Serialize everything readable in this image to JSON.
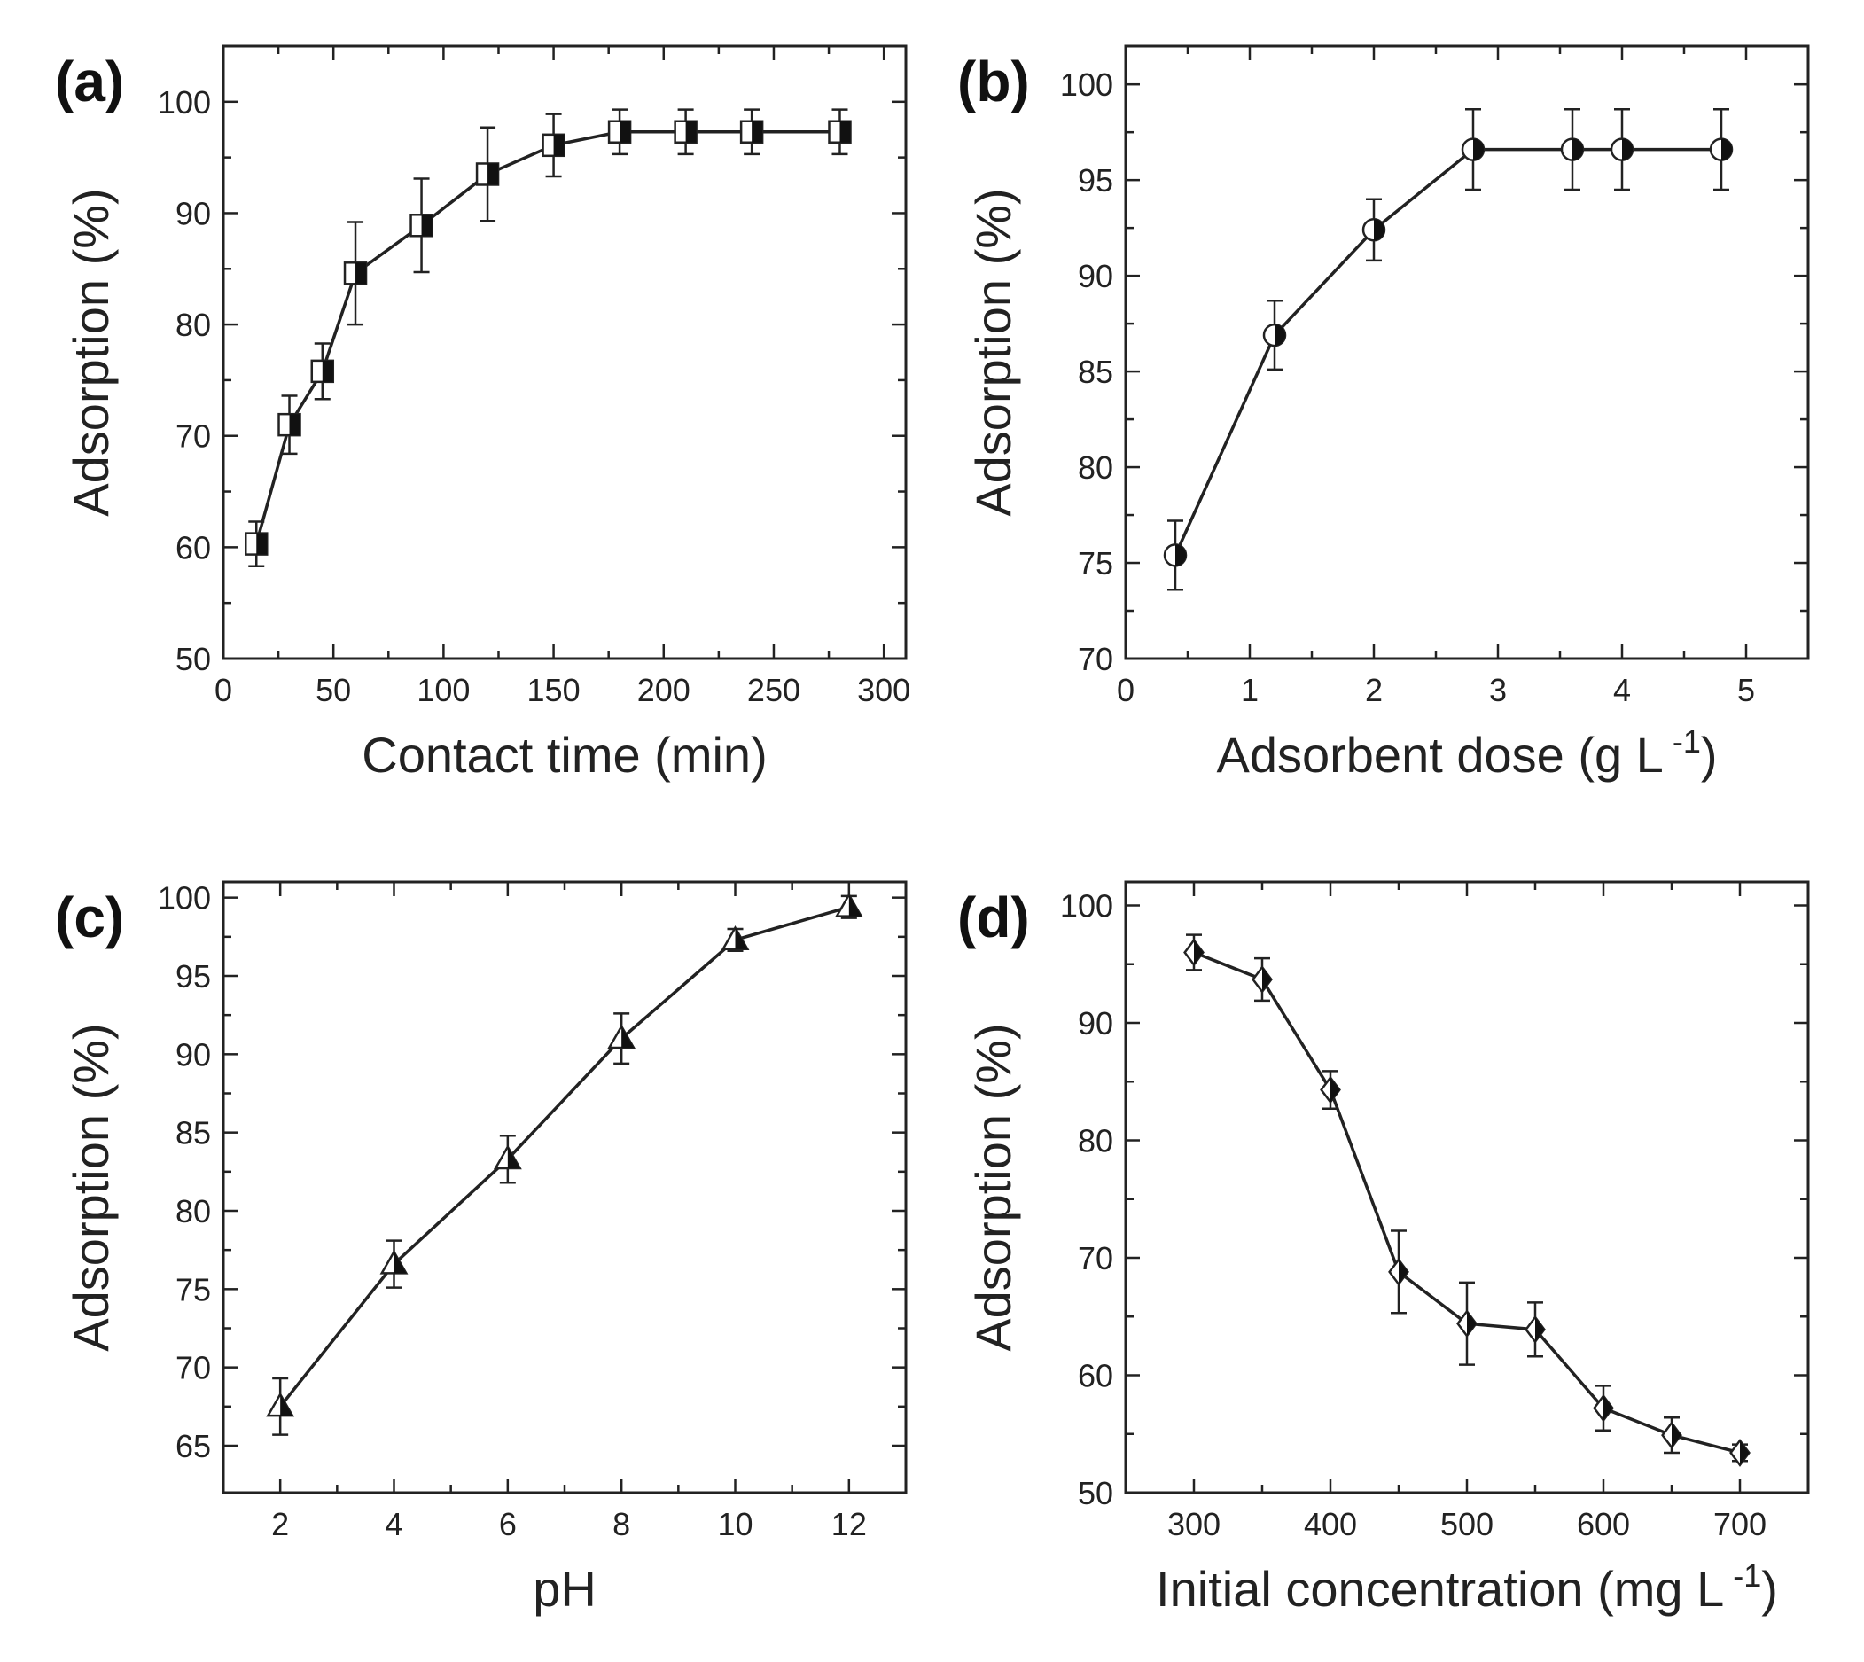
{
  "chart_data": [
    {
      "type": "line",
      "panel_label": "(a)",
      "xlabel": "Contact time (min)",
      "ylabel": "Adsorption (%)",
      "xlim": [
        0,
        310
      ],
      "ylim": [
        50,
        105
      ],
      "xticks": [
        0,
        50,
        100,
        150,
        200,
        250,
        300
      ],
      "yticks": [
        50,
        60,
        70,
        80,
        90,
        100
      ],
      "marker": "square-half-filled",
      "series": [
        {
          "x": [
            15,
            30,
            45,
            60,
            90,
            120,
            150,
            180,
            210,
            240,
            280
          ],
          "values": [
            60.3,
            71.0,
            75.8,
            84.6,
            88.9,
            93.5,
            96.1,
            97.3,
            97.3,
            97.3,
            97.3
          ],
          "errors": [
            2.0,
            2.6,
            2.5,
            4.6,
            4.2,
            4.2,
            2.8,
            2.0,
            2.0,
            2.0,
            2.0
          ]
        }
      ]
    },
    {
      "type": "line",
      "panel_label": "(b)",
      "xlabel": "Adsorbent dose (g L",
      "xlabel_sup": "-1",
      "xlabel_tail": ")",
      "ylabel": "Adsorption (%)",
      "xlim": [
        0,
        5.5
      ],
      "ylim": [
        70,
        102
      ],
      "xticks": [
        0,
        1,
        2,
        3,
        4,
        5
      ],
      "yticks": [
        70,
        75,
        80,
        85,
        90,
        95,
        100
      ],
      "marker": "circle-half-filled",
      "series": [
        {
          "x": [
            0.4,
            1.2,
            2.0,
            2.8,
            3.6,
            4.0,
            4.8
          ],
          "values": [
            75.4,
            86.9,
            92.4,
            96.6,
            96.6,
            96.6,
            96.6
          ],
          "errors": [
            1.8,
            1.8,
            1.6,
            2.1,
            2.1,
            2.1,
            2.1
          ]
        }
      ]
    },
    {
      "type": "line",
      "panel_label": "(c)",
      "xlabel": "pH",
      "ylabel": "Adsorption (%)",
      "xlim": [
        1,
        13
      ],
      "ylim": [
        62,
        101
      ],
      "xticks": [
        2,
        4,
        6,
        8,
        10,
        12
      ],
      "yticks": [
        65,
        70,
        75,
        80,
        85,
        90,
        95,
        100
      ],
      "marker": "triangle-half-filled",
      "series": [
        {
          "x": [
            2,
            4,
            6,
            8,
            10,
            12
          ],
          "values": [
            67.5,
            76.6,
            83.3,
            91.0,
            97.3,
            99.4
          ],
          "errors": [
            1.8,
            1.5,
            1.5,
            1.6,
            0.7,
            0.7
          ]
        }
      ]
    },
    {
      "type": "line",
      "panel_label": "(d)",
      "xlabel": "Initial concentration (mg L",
      "xlabel_sup": "-1",
      "xlabel_tail": ")",
      "ylabel": "Adsorption (%)",
      "xlim": [
        250,
        750
      ],
      "ylim": [
        50,
        102
      ],
      "xticks": [
        300,
        400,
        500,
        600,
        700
      ],
      "yticks": [
        50,
        60,
        70,
        80,
        90,
        100
      ],
      "marker": "diamond-half-filled",
      "series": [
        {
          "x": [
            300,
            350,
            400,
            450,
            500,
            550,
            600,
            650,
            700
          ],
          "values": [
            96.0,
            93.7,
            84.3,
            68.8,
            64.4,
            63.9,
            57.2,
            54.9,
            53.4
          ],
          "errors": [
            1.5,
            1.8,
            1.6,
            3.5,
            3.5,
            2.3,
            1.9,
            1.5,
            0.7
          ]
        }
      ]
    }
  ]
}
